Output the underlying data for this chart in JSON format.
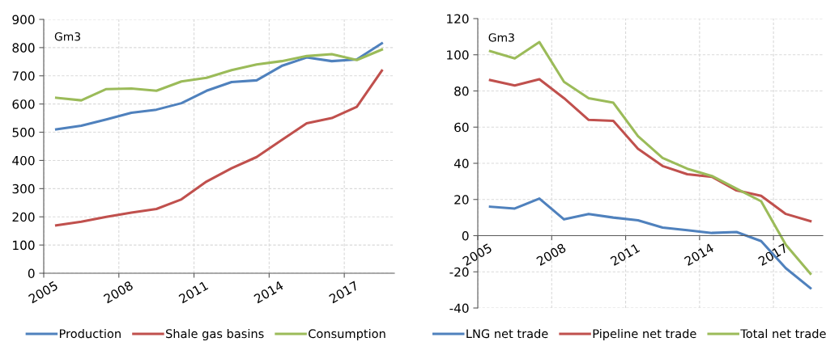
{
  "chart_data": [
    {
      "type": "line",
      "ylabel": "Gm3",
      "x": [
        2005.5,
        2006.5,
        2007.5,
        2008.5,
        2009.5,
        2010.5,
        2011.5,
        2012.5,
        2013.5,
        2014.5,
        2015.5,
        2016.5,
        2017.5,
        2018.5
      ],
      "xlim": [
        2005,
        2019
      ],
      "xticks": [
        2005,
        2008,
        2011,
        2014,
        2017
      ],
      "ylim": [
        0,
        900
      ],
      "yticks": [
        0,
        100,
        200,
        300,
        400,
        500,
        600,
        700,
        800,
        900
      ],
      "grid": true,
      "legend": "bottom",
      "series": [
        {
          "name": "Production",
          "color": "#4f81bd",
          "values": [
            510,
            523,
            545,
            569,
            580,
            603,
            647,
            678,
            684,
            735,
            765,
            752,
            758,
            815
          ]
        },
        {
          "name": "Shale gas basins",
          "color": "#c0504d",
          "values": [
            170,
            183,
            200,
            215,
            228,
            262,
            325,
            372,
            412,
            472,
            532,
            550,
            590,
            718
          ]
        },
        {
          "name": "Consumption",
          "color": "#9bbb59",
          "values": [
            622,
            613,
            653,
            655,
            647,
            680,
            693,
            720,
            740,
            752,
            770,
            777,
            756,
            793
          ]
        }
      ]
    },
    {
      "type": "line",
      "ylabel": "Gm3",
      "x": [
        2005.5,
        2006.5,
        2007.5,
        2008.5,
        2009.5,
        2010.5,
        2011.5,
        2012.5,
        2013.5,
        2014.5,
        2015.5,
        2016.5,
        2017.5,
        2018.5
      ],
      "xlim": [
        2005,
        2019
      ],
      "xticks": [
        2005,
        2008,
        2011,
        2014,
        2017
      ],
      "ylim": [
        -40,
        120
      ],
      "yticks": [
        -40,
        -20,
        0,
        20,
        40,
        60,
        80,
        100,
        120
      ],
      "grid": true,
      "legend": "bottom",
      "series": [
        {
          "name": "LNG net trade",
          "color": "#4f81bd",
          "values": [
            16,
            15,
            20.5,
            9,
            12,
            10,
            8.5,
            4.5,
            3,
            1.5,
            2,
            -3,
            -18,
            -29
          ]
        },
        {
          "name": "Pipeline net trade",
          "color": "#c0504d",
          "values": [
            86,
            83,
            86.5,
            76,
            64,
            63.5,
            48,
            38.5,
            34,
            32.5,
            25,
            22,
            12,
            8
          ]
        },
        {
          "name": "Total net trade",
          "color": "#9bbb59",
          "values": [
            102,
            98,
            107,
            85,
            76,
            73.5,
            55,
            43,
            37,
            33,
            26,
            19,
            -5,
            -21
          ]
        }
      ]
    }
  ]
}
